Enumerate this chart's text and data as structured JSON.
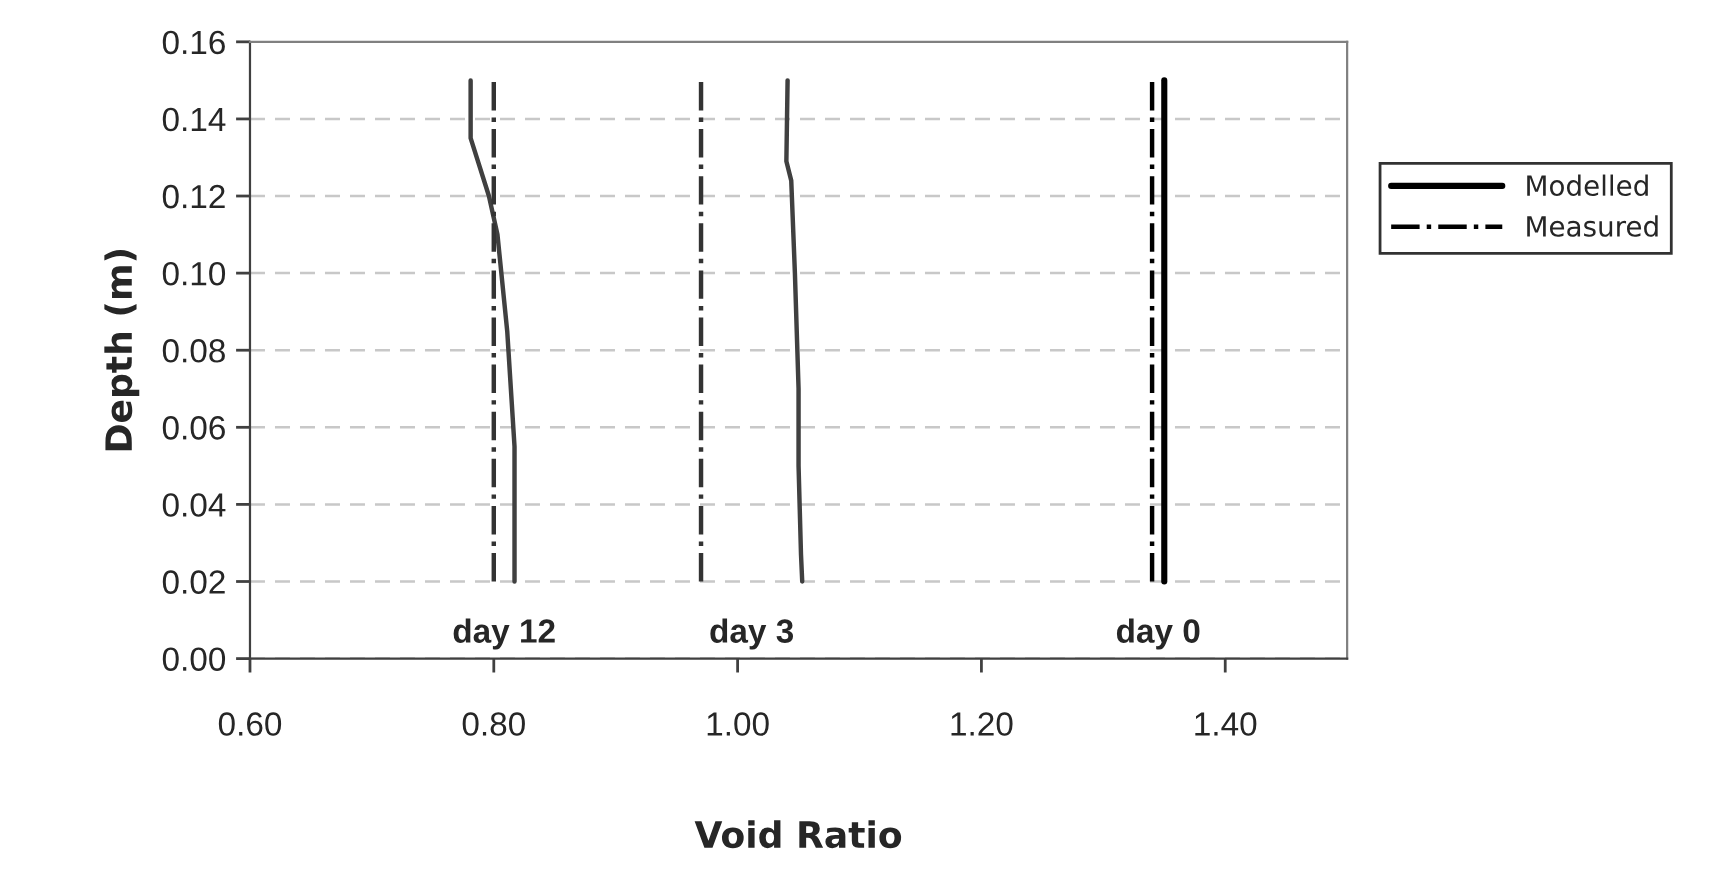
{
  "chart_data": {
    "type": "line",
    "xlabel": "Void Ratio",
    "ylabel": "Depth (m)",
    "xlim": [
      0.6,
      1.5
    ],
    "xticks": [
      {
        "value": 0.6,
        "label": "0.60"
      },
      {
        "value": 0.8,
        "label": "0.80"
      },
      {
        "value": 1.0,
        "label": "1.00"
      },
      {
        "value": 1.2,
        "label": "1.20"
      },
      {
        "value": 1.4,
        "label": "1.40"
      }
    ],
    "ylim": [
      0,
      0.16
    ],
    "yticks": [
      {
        "value": 0,
        "label": "0.00"
      },
      {
        "value": 0.02,
        "label": "0.02"
      },
      {
        "value": 0.04,
        "label": "0.04"
      },
      {
        "value": 0.06,
        "label": "0.06"
      },
      {
        "value": 0.08,
        "label": "0.08"
      },
      {
        "value": 0.1,
        "label": "0.10"
      },
      {
        "value": 0.12,
        "label": "0.12"
      },
      {
        "value": 0.14,
        "label": "0.14"
      },
      {
        "value": 0.16,
        "label": "0.16"
      }
    ],
    "grid": "y",
    "legend": "right",
    "marker": "none",
    "series": [
      {
        "color": "#404040",
        "line_style": "solid",
        "x": [
          0.817,
          0.817,
          0.814,
          0.811,
          0.803,
          0.796,
          0.781,
          0.781
        ],
        "values": [
          0.02,
          0.055,
          0.07,
          0.085,
          0.11,
          0.12,
          0.135,
          0.15
        ]
      },
      {
        "color": "#333333",
        "line_style": "dashdot",
        "x": [
          0.8,
          0.8
        ],
        "values": [
          0.02,
          0.15
        ]
      },
      {
        "color": "#404040",
        "line_style": "solid",
        "x": [
          1.053,
          1.052,
          1.05,
          1.05,
          1.047,
          1.044,
          1.04,
          1.041
        ],
        "values": [
          0.02,
          0.027,
          0.05,
          0.07,
          0.1,
          0.124,
          0.129,
          0.15
        ]
      },
      {
        "color": "#333333",
        "line_style": "dashdot",
        "x": [
          0.97,
          0.97
        ],
        "values": [
          0.02,
          0.15
        ]
      },
      {
        "name": "Modelled",
        "color": "#000000",
        "line_style": "solid",
        "x": [
          1.35,
          1.35
        ],
        "values": [
          0.02,
          0.15
        ]
      },
      {
        "name": "Measured",
        "color": "#000000",
        "line_style": "dashdot",
        "x": [
          1.34,
          1.34
        ],
        "values": [
          0.02,
          0.15
        ]
      }
    ],
    "annotations": [
      "day 12",
      "day 3",
      "day 0"
    ]
  }
}
